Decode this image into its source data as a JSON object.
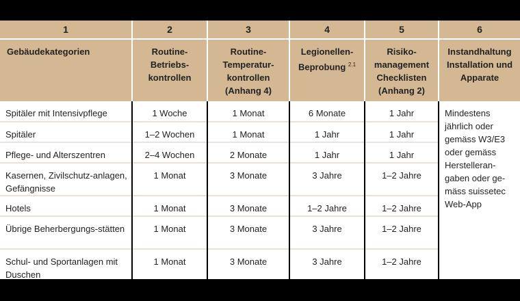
{
  "headers": {
    "numbers": [
      "1",
      "2",
      "3",
      "4",
      "5",
      "6"
    ],
    "labels": [
      "Gebäudekategorien",
      "Routine-Betriebs-kontrollen",
      "Routine-Temperatur-kontrollen (Anhang 4)",
      "Legionellen-Beprobung",
      "Risiko-management Checklisten (Anhang 2)",
      "Instandhaltung Installation und Apparate"
    ],
    "footnote_mark": "2.1"
  },
  "rows": [
    {
      "category": "Spitäler mit Intensivpflege",
      "betrieb": "1 Woche",
      "temperatur": "1 Monat",
      "legionellen": "6 Monate",
      "risiko": "1 Jahr"
    },
    {
      "category": "Spitäler",
      "betrieb": "1–2 Wochen",
      "temperatur": "1 Monat",
      "legionellen": "1 Jahr",
      "risiko": "1 Jahr"
    },
    {
      "category": "Pflege- und Alterszentren",
      "betrieb": "2–4 Wochen",
      "temperatur": "2 Monate",
      "legionellen": "1 Jahr",
      "risiko": "1 Jahr"
    },
    {
      "category": "Kasernen, Zivilschutz-anlagen, Gefängnisse",
      "betrieb": "1 Monat",
      "temperatur": "3 Monate",
      "legionellen": "3 Jahre",
      "risiko": "1–2 Jahre"
    },
    {
      "category": "Hotels",
      "betrieb": "1 Monat",
      "temperatur": "3 Monate",
      "legionellen": "1–2 Jahre",
      "risiko": "1–2 Jahre"
    },
    {
      "category": "Übrige Beherbergungs-stätten",
      "betrieb": "1 Monat",
      "temperatur": "3 Monate",
      "legionellen": "3 Jahre",
      "risiko": "1–2 Jahre"
    },
    {
      "category": "Schul- und Sportanlagen mit Duschen",
      "betrieb": "1 Monat",
      "temperatur": "3 Monate",
      "legionellen": "3 Jahre",
      "risiko": "1–2 Jahre"
    }
  ],
  "note": "Mindestens jährlich oder gemäss W3/E3 oder gemäss Herstelleran-gaben oder ge-mäss suissetec Web-App"
}
